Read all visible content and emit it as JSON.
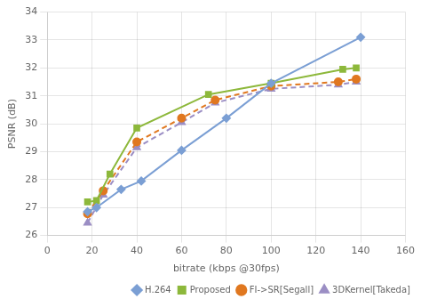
{
  "chart_data": {
    "type": "line",
    "xlabel": "bitrate (kbps @30fps)",
    "ylabel": "PSNR (dB)",
    "series": [
      {
        "name": "H.264",
        "color": "#7B9FD4",
        "marker": "diamond",
        "line_style": "solid",
        "x": [
          18,
          22,
          33,
          42,
          60,
          80,
          100,
          140
        ],
        "values": [
          26.85,
          27.0,
          27.65,
          27.95,
          29.05,
          30.2,
          31.45,
          33.1
        ]
      },
      {
        "name": "Proposed",
        "color": "#8DB83B",
        "marker": "square",
        "line_style": "solid",
        "x": [
          18,
          22,
          28,
          40,
          72,
          100,
          132,
          138
        ],
        "values": [
          27.2,
          27.25,
          28.2,
          29.85,
          31.05,
          31.45,
          31.95,
          32.0
        ]
      },
      {
        "name": "FI->SR[Segall]",
        "color": "#E07820",
        "marker": "circle",
        "line_style": "dashed",
        "x": [
          18,
          25,
          40,
          60,
          75,
          100,
          130,
          138
        ],
        "values": [
          26.78,
          27.6,
          29.35,
          30.2,
          30.85,
          31.35,
          31.5,
          31.6
        ]
      },
      {
        "name": "3DKernel[Takeda]",
        "color": "#9B8EC4",
        "marker": "triangle",
        "line_style": "dashed",
        "x": [
          18,
          25,
          40,
          60,
          75,
          100,
          130,
          138
        ],
        "values": [
          26.45,
          27.45,
          29.15,
          30.05,
          30.75,
          31.25,
          31.4,
          31.5
        ]
      }
    ],
    "xlim": [
      0,
      160
    ],
    "ylim": [
      26,
      34
    ],
    "xticks": [
      0,
      20,
      40,
      60,
      80,
      100,
      120,
      140,
      160
    ],
    "yticks": [
      26,
      27,
      28,
      29,
      30,
      31,
      32,
      33,
      34
    ],
    "grid": true,
    "legend": "lower right"
  }
}
